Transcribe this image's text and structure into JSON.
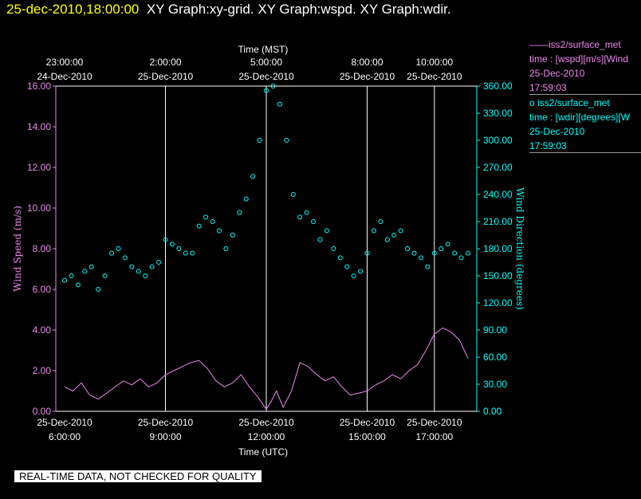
{
  "header": {
    "timestamp": "25-dec-2010,18:00:00",
    "title": "XY Graph:xy-grid.  XY Graph:wspd.  XY Graph:wdir."
  },
  "legend": {
    "wspd": {
      "line1": "——iss2/surface_met",
      "line2": "time : [wspd][m/s][Wind",
      "line3": "25-Dec-2010",
      "line4": "17:59:03"
    },
    "wdir": {
      "line1": "iss2/surface_met",
      "line2": "time : [wdir][degrees][W",
      "line3": "25-Dec-2010",
      "line4": "17:59:03"
    }
  },
  "notice": "REAL-TIME DATA, NOT CHECKED FOR QUALITY",
  "colors": {
    "wspd": "#ee88ee",
    "wdir": "#00ffff",
    "grid": "#ffffff",
    "background": "#000000"
  },
  "chart_data": {
    "type": "line",
    "top_axis": {
      "label": "Time (MST)",
      "ticks": [
        {
          "t": 6,
          "line1": "23:00:00",
          "line2": "24-Dec-2010"
        },
        {
          "t": 9,
          "line1": "2:00:00",
          "line2": "25-Dec-2010"
        },
        {
          "t": 12,
          "line1": "5:00:00",
          "line2": "25-Dec-2010"
        },
        {
          "t": 15,
          "line1": "8:00:00",
          "line2": "25-Dec-2010"
        },
        {
          "t": 17,
          "line1": "10:00:00",
          "line2": "25-Dec-2010"
        }
      ]
    },
    "bottom_axis": {
      "label": "Time (UTC)",
      "ticks": [
        {
          "t": 6,
          "line1": "25-Dec-2010",
          "line2": "6:00:00"
        },
        {
          "t": 9,
          "line1": "25-Dec-2010",
          "line2": "9:00:00"
        },
        {
          "t": 12,
          "line1": "25-Dec-2010",
          "line2": "12:00:00"
        },
        {
          "t": 15,
          "line1": "25-Dec-2010",
          "line2": "15:00:00"
        },
        {
          "t": 17,
          "line1": "25-Dec-2010",
          "line2": "17:00:00"
        }
      ],
      "range_hours_utc": [
        6,
        18
      ]
    },
    "left_axis": {
      "label": "Wind Speed (m/s)",
      "ylim": [
        0,
        16
      ],
      "ticks": [
        "0.00",
        "2.00",
        "4.00",
        "6.00",
        "8.00",
        "10.00",
        "12.00",
        "14.00",
        "16.00"
      ]
    },
    "right_axis": {
      "label": "Wind Direction (degrees)",
      "ylim": [
        0,
        360
      ],
      "ticks": [
        "0.00",
        "30.00",
        "60.00",
        "90.00",
        "120.00",
        "150.00",
        "180.00",
        "210.00",
        "240.00",
        "270.00",
        "300.00",
        "330.00",
        "360.00"
      ]
    },
    "grid": "vertical",
    "series": [
      {
        "name": "iss2/surface_met time : [wspd][m/s]",
        "axis": "left",
        "style": "line",
        "x": [
          6.0,
          6.25,
          6.5,
          6.75,
          7.0,
          7.25,
          7.5,
          7.75,
          8.0,
          8.25,
          8.5,
          8.75,
          9.0,
          9.25,
          9.5,
          9.75,
          10.0,
          10.25,
          10.5,
          10.75,
          11.0,
          11.25,
          11.5,
          11.75,
          12.0,
          12.15,
          12.3,
          12.5,
          12.75,
          13.0,
          13.25,
          13.5,
          13.75,
          14.0,
          14.25,
          14.5,
          14.75,
          15.0,
          15.25,
          15.5,
          15.75,
          16.0,
          16.25,
          16.5,
          16.75,
          17.0,
          17.25,
          17.5,
          17.75,
          18.0
        ],
        "y": [
          1.2,
          1.0,
          1.4,
          0.8,
          0.6,
          0.9,
          1.2,
          1.5,
          1.3,
          1.6,
          1.2,
          1.4,
          1.8,
          2.0,
          2.2,
          2.4,
          2.5,
          2.1,
          1.5,
          1.2,
          1.4,
          1.8,
          1.2,
          0.7,
          0.1,
          0.5,
          1.0,
          0.2,
          1.0,
          2.4,
          2.2,
          1.8,
          1.5,
          1.7,
          1.2,
          0.8,
          0.9,
          1.0,
          1.3,
          1.5,
          1.8,
          1.6,
          2.0,
          2.3,
          3.0,
          3.8,
          4.1,
          3.9,
          3.5,
          2.6
        ]
      },
      {
        "name": "iss2/surface_met time : [wdir][degrees]",
        "axis": "right",
        "style": "scatter",
        "x": [
          6.0,
          6.2,
          6.4,
          6.6,
          6.8,
          7.0,
          7.2,
          7.4,
          7.6,
          7.8,
          8.0,
          8.2,
          8.4,
          8.6,
          8.8,
          9.0,
          9.2,
          9.4,
          9.6,
          9.8,
          10.0,
          10.2,
          10.4,
          10.6,
          10.8,
          11.0,
          11.2,
          11.4,
          11.6,
          11.8,
          12.0,
          12.2,
          12.4,
          12.6,
          12.8,
          13.0,
          13.2,
          13.4,
          13.6,
          13.8,
          14.0,
          14.2,
          14.4,
          14.6,
          14.8,
          15.0,
          15.2,
          15.4,
          15.6,
          15.8,
          16.0,
          16.2,
          16.4,
          16.6,
          16.8,
          17.0,
          17.2,
          17.4,
          17.6,
          17.8,
          18.0
        ],
        "y": [
          145,
          150,
          140,
          155,
          160,
          135,
          150,
          175,
          180,
          170,
          160,
          155,
          150,
          160,
          165,
          190,
          185,
          180,
          175,
          175,
          205,
          215,
          210,
          200,
          180,
          195,
          220,
          235,
          260,
          300,
          355,
          360,
          340,
          300,
          240,
          215,
          220,
          210,
          190,
          200,
          180,
          170,
          160,
          150,
          155,
          175,
          200,
          210,
          190,
          195,
          200,
          180,
          175,
          170,
          160,
          175,
          180,
          185,
          175,
          170,
          175
        ]
      }
    ]
  }
}
